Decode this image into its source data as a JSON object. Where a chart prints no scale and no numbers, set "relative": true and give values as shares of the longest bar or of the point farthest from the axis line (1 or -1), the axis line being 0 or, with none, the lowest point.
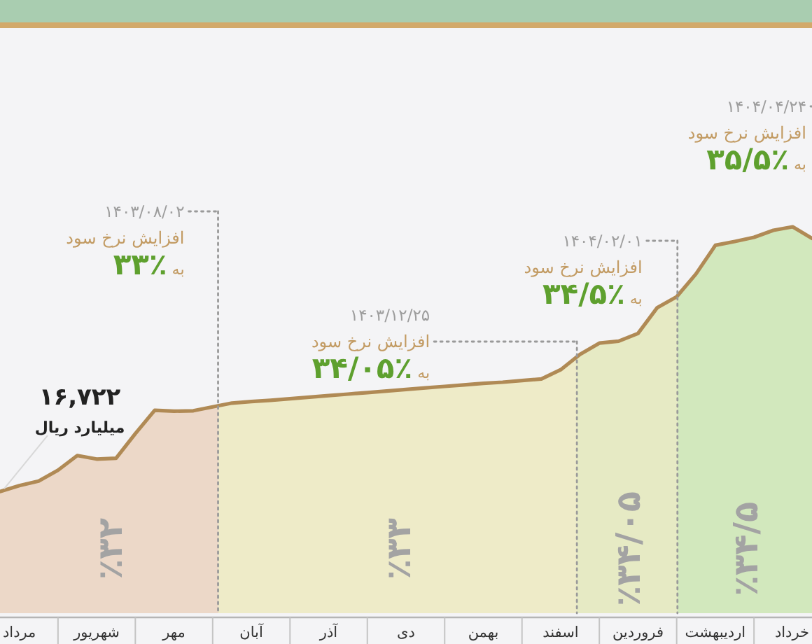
{
  "chart_data": {
    "type": "area",
    "relative": true,
    "categories": [
      null,
      "مرداد",
      null,
      null,
      null,
      "شهریور",
      null,
      null,
      null,
      "مهر",
      null,
      null,
      null,
      "آبان",
      null,
      null,
      null,
      "آذر",
      null,
      null,
      null,
      "دی",
      null,
      null,
      null,
      "بهمن",
      null,
      null,
      null,
      "اسفند",
      null,
      null,
      null,
      "فروردین",
      null,
      null,
      null,
      "اردیبهشت",
      null,
      null,
      null,
      "خرداد",
      null
    ],
    "series": [
      {
        "color": "#b08a55",
        "values": [
          0.315,
          0.33,
          0.342,
          0.37,
          0.408,
          0.399,
          0.401,
          0.465,
          0.525,
          0.523,
          0.524,
          0.534,
          0.544,
          0.548,
          0.551,
          0.555,
          0.559,
          0.563,
          0.567,
          0.571,
          0.575,
          0.579,
          0.583,
          0.587,
          0.591,
          0.595,
          0.598,
          0.602,
          0.606,
          0.63,
          0.67,
          0.699,
          0.704,
          0.724,
          0.791,
          0.819,
          0.878,
          0.952,
          0.962,
          0.973,
          0.991,
          1.0,
          0.97
        ]
      }
    ],
    "annotations": [
      "۱۶,۷۲۲",
      "میلیارد ریال",
      "۱۴۰۳/۰۸/۰۲",
      "افزایش نرخ سود",
      "به **٪۳۳**",
      "۱۴۰۳/۱۲/۲۵",
      "افزایش نرخ سود",
      "به **٪۳۴/۰۵**",
      "۱۴۰۴/۰۲/۰۱",
      "افزایش نرخ سود",
      "به **٪۳۴/۵**",
      "۱۴۰۴/۰۴/۲۴",
      "افزایش نرخ سود",
      "به **٪۳۵/۵**",
      "٪۳۲",
      "٪۳۳",
      "٪۳۴/۰۵",
      "٪۳۴/۵"
    ]
  }
}
